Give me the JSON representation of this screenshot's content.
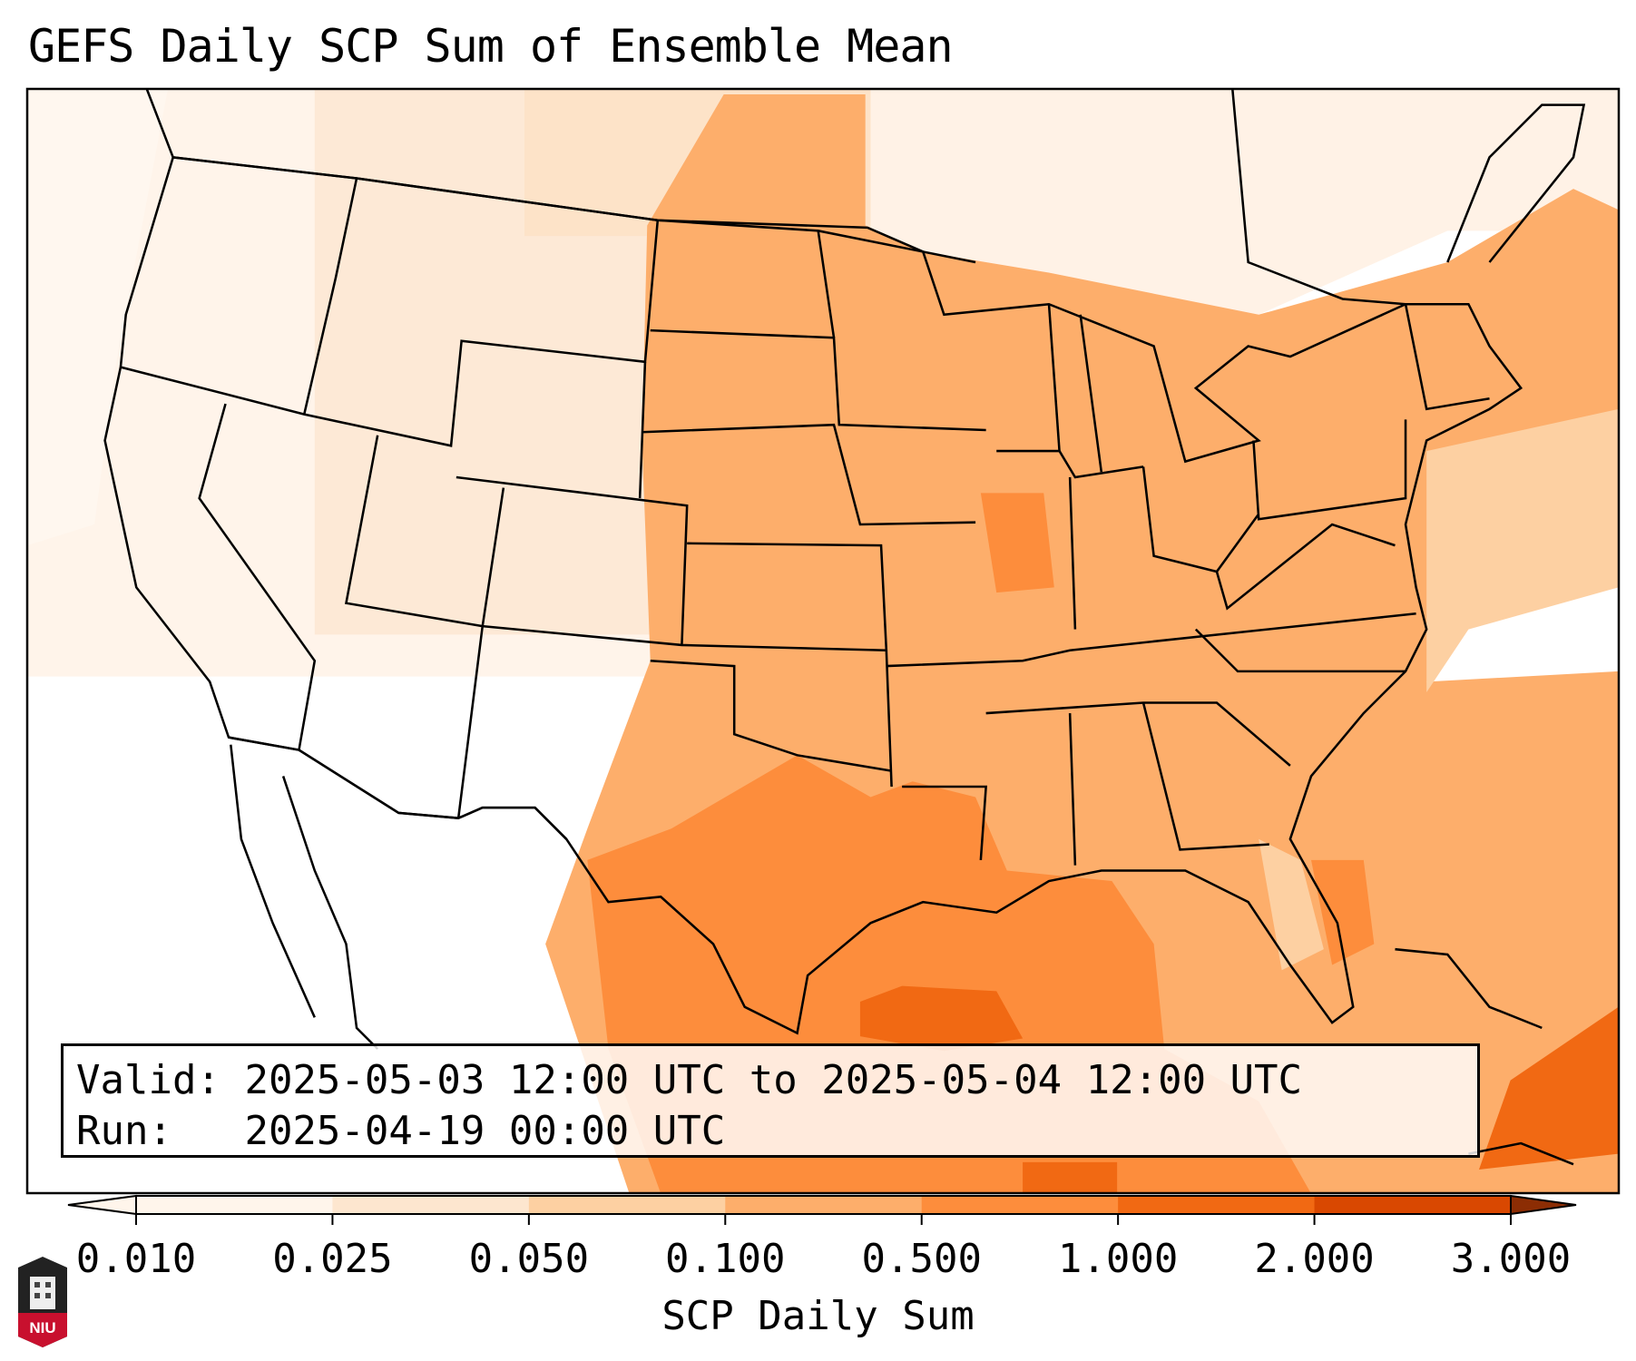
{
  "title": "GEFS Daily SCP Sum of Ensemble Mean",
  "info": {
    "valid_label": "Valid:",
    "valid_value": "2025-05-03 12:00 UTC to 2025-05-04 12:00 UTC",
    "run_label": "Run:",
    "run_value": "2025-04-19 00:00 UTC"
  },
  "colorbar": {
    "label": "SCP Daily Sum",
    "ticks": [
      "0.010",
      "0.025",
      "0.050",
      "0.100",
      "0.500",
      "1.000",
      "2.000",
      "3.000"
    ],
    "colors": [
      "#fff5eb",
      "#fde6cf",
      "#fdd0a2",
      "#fdae6b",
      "#fd8d3c",
      "#f16913",
      "#d94801",
      "#8c2d04"
    ]
  },
  "logo": {
    "text": "NIU"
  }
}
